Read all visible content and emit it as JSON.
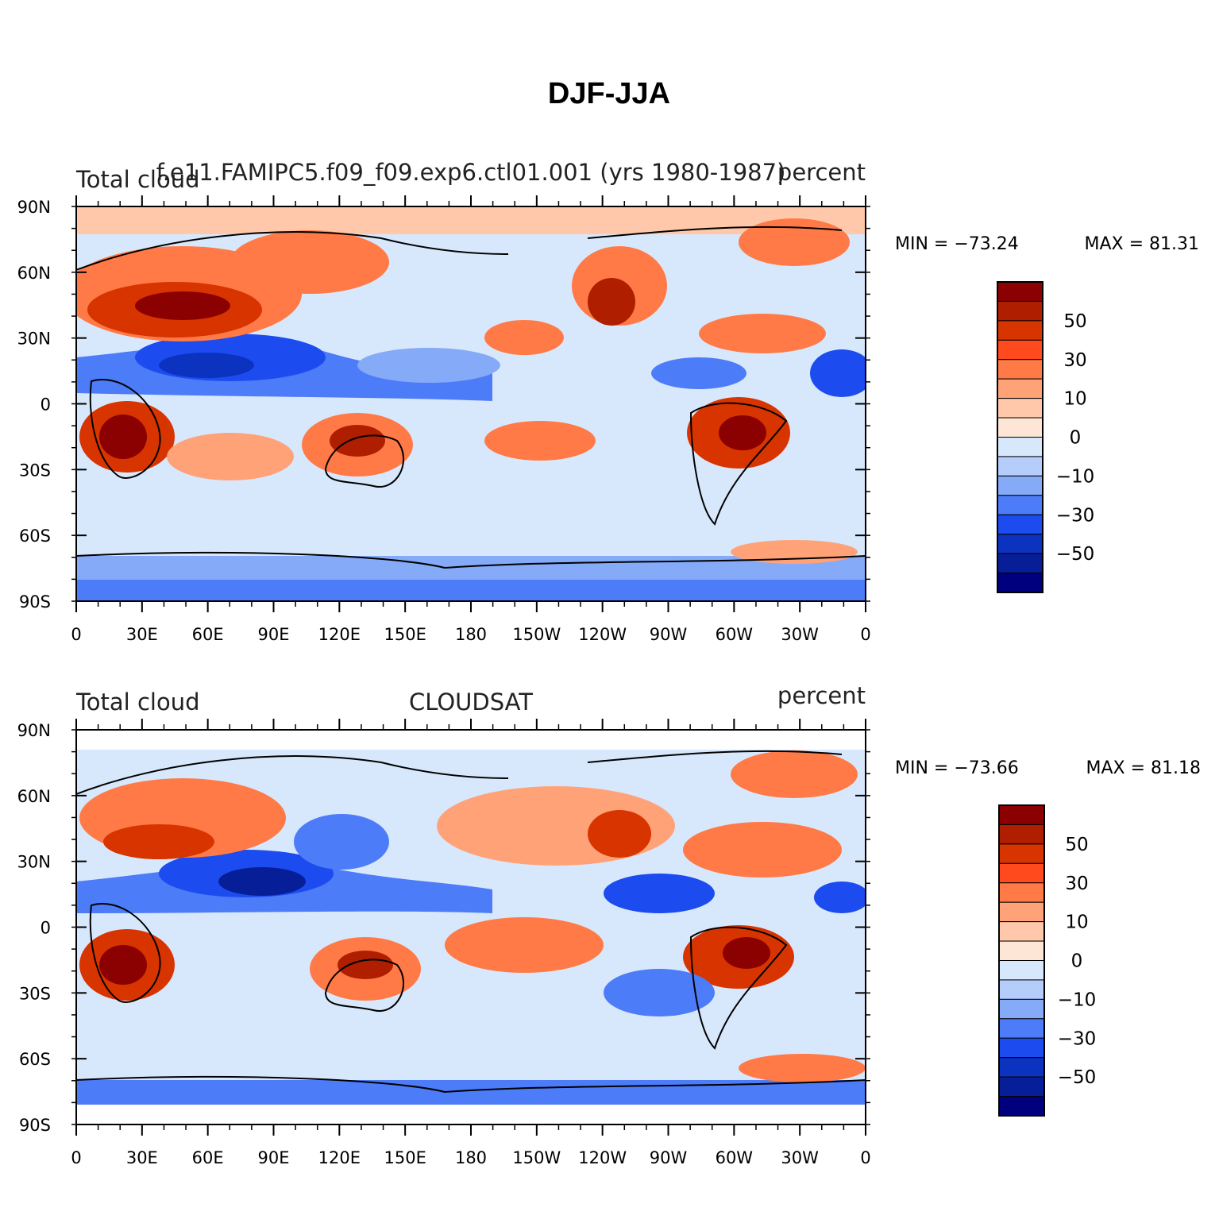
{
  "figure": {
    "title": "DJF-JJA"
  },
  "axes": {
    "lat_labels": [
      "90N",
      "60N",
      "30N",
      "0",
      "30S",
      "60S",
      "90S"
    ],
    "lon_labels": [
      "0",
      "30E",
      "60E",
      "90E",
      "120E",
      "150E",
      "180",
      "150W",
      "120W",
      "90W",
      "60W",
      "30W",
      "0"
    ]
  },
  "colorbar": {
    "labels": [
      "50",
      "30",
      "10",
      "0",
      "−10",
      "−30",
      "−50"
    ],
    "colors": [
      "#8b0000",
      "#b01e00",
      "#d83400",
      "#ff4a1e",
      "#ff7a46",
      "#ffa278",
      "#ffc8aa",
      "#fde6d6",
      "#d8e8fc",
      "#b4cdfa",
      "#84aaf8",
      "#4c7cf8",
      "#1c4cf0",
      "#0c32c0",
      "#061e98",
      "#00007e"
    ]
  },
  "panels": [
    {
      "left_title": "Total cloud",
      "center_title": "f.e11.FAMIPC5.f09_f09.exp6.ctl01.001 (yrs 1980-1987)",
      "right_title": "percent",
      "min_label": "MIN = −73.24",
      "max_label": "MAX = 81.31"
    },
    {
      "left_title": "Total cloud",
      "center_title": "CLOUDSAT",
      "right_title": "percent",
      "min_label": "MIN = −73.66",
      "max_label": "MAX = 81.18"
    }
  ]
}
